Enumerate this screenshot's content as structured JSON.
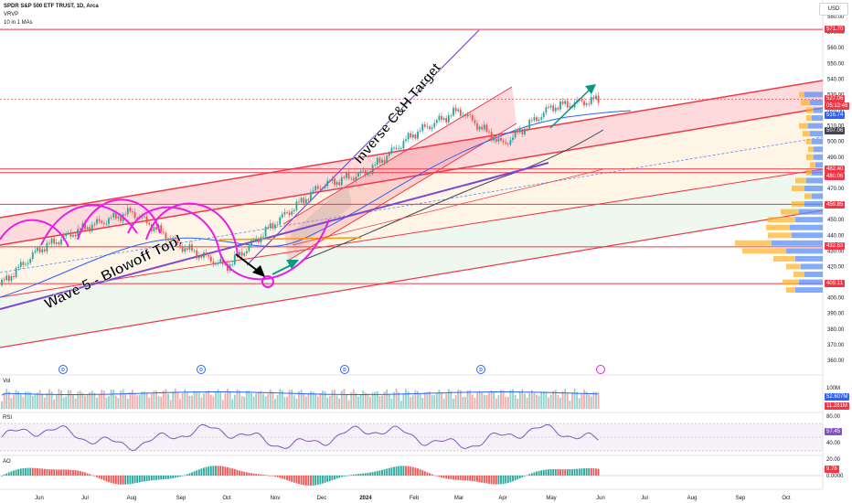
{
  "header": {
    "title": "SPDR S&P 500 ETF TRUST, 1D, Arca",
    "line2": "VRVP",
    "line3": "10 in 1 MAs"
  },
  "currency": "USD",
  "annotations": {
    "wave5": "Wave 5 - Blowoff Top!",
    "target": "Inverse C&H Target"
  },
  "price_axis_ticks": [
    "580.00",
    "570.00",
    "560.00",
    "550.00",
    "540.00",
    "530.00",
    "520.00",
    "510.00",
    "500.00",
    "490.00",
    "480.00",
    "470.00",
    "460.00",
    "450.00",
    "440.00",
    "430.00",
    "420.00",
    "410.00",
    "400.00",
    "390.00",
    "380.00",
    "370.00",
    "360.00"
  ],
  "price_tags": {
    "t571": "571.70",
    "t527": "527.06",
    "countdown": "05:12:46",
    "t516": "516.74",
    "t507": "507.06",
    "t482": "482.40",
    "t480": "480.06",
    "t459": "459.85",
    "t432": "432.63",
    "t409": "409.11"
  },
  "x_axis": {
    "labels": [
      "Jun",
      "Jul",
      "Aug",
      "Sep",
      "Oct",
      "Nov",
      "Dec",
      "2024",
      "Feb",
      "Mar",
      "Apr",
      "May",
      "Jun",
      "Jul",
      "Aug",
      "Sep",
      "Oct"
    ]
  },
  "event_markers": [
    "D",
    "D",
    "D",
    "D"
  ],
  "panes": {
    "vol": {
      "label": "Vol",
      "ticks": [
        "100M"
      ],
      "tag1": "52.607M",
      "tag2": "11.281M"
    },
    "rsi": {
      "label": "RSI",
      "ticks": [
        "80.00",
        "40.00"
      ],
      "tag": "57.45"
    },
    "ao": {
      "label": "AO",
      "ticks": [
        "20.00",
        "0.0000"
      ],
      "tag": "9.78"
    }
  },
  "colors": {
    "up": "#26a69a",
    "down": "#ef5350",
    "red_line": "#f23645",
    "pink": "#e91ee6",
    "purple_line": "#7b46d3",
    "blue_ma": "#2962ff",
    "rsi": "#7e57c2",
    "vp_up": "#5b8ff9",
    "vp_down": "#ffb020"
  },
  "chart_data": {
    "type": "candlestick",
    "symbol": "SPDR S&P 500 ETF TRUST",
    "interval": "1D",
    "exchange": "Arca",
    "ylim": [
      355,
      585
    ],
    "x": [
      "2023-06",
      "2023-07",
      "2023-08",
      "2023-09",
      "2023-10",
      "2023-11",
      "2023-12",
      "2024-01",
      "2024-02",
      "2024-03",
      "2024-04",
      "2024-05",
      "2024-06"
    ],
    "close": [
      431,
      445,
      455,
      433,
      420,
      448,
      472,
      480,
      505,
      520,
      498,
      522,
      527.06
    ],
    "horizontal_levels": [
      571.7,
      482.4,
      480.06,
      459.85,
      432.63,
      409.11
    ],
    "last_price": 527.06,
    "rsi_last": 57.45,
    "ao_last": 9.78
  }
}
